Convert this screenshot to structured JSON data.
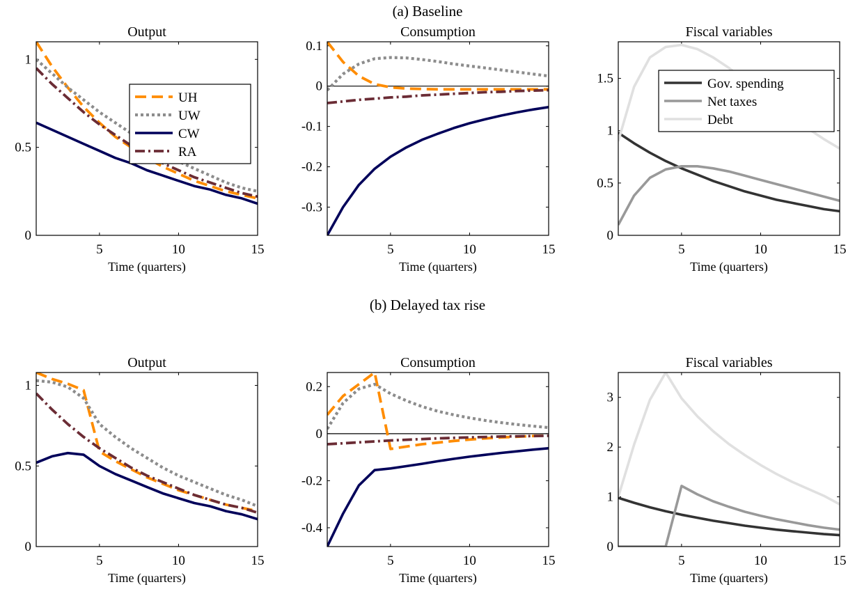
{
  "figure": {
    "sections": [
      {
        "title": "(a) Baseline"
      },
      {
        "title": "(b) Delayed tax rise"
      }
    ]
  },
  "chart_data": [
    {
      "type": "line",
      "section": "(a) Baseline",
      "title": "Output",
      "xlabel": "Time (quarters)",
      "ylabel": "",
      "xlim": [
        1,
        15
      ],
      "ylim": [
        0,
        1.1
      ],
      "xticks": [
        5,
        10,
        15
      ],
      "yticks": [
        0,
        0.5,
        1
      ],
      "ytick_labels": [
        "0",
        "0.5",
        "1"
      ],
      "grid": false,
      "legend": "top-right",
      "zero_line": false,
      "x": [
        1,
        2,
        3,
        4,
        5,
        6,
        7,
        8,
        9,
        10,
        11,
        12,
        13,
        14,
        15
      ],
      "series": [
        {
          "name": "UH",
          "style": "dashed",
          "color": "#ff8c00",
          "values": [
            1.1,
            0.96,
            0.84,
            0.73,
            0.64,
            0.56,
            0.5,
            0.44,
            0.39,
            0.35,
            0.31,
            0.28,
            0.25,
            0.23,
            0.21
          ]
        },
        {
          "name": "UW",
          "style": "dotted",
          "color": "#8c8c8c",
          "values": [
            1.0,
            0.92,
            0.84,
            0.77,
            0.7,
            0.64,
            0.58,
            0.52,
            0.47,
            0.42,
            0.38,
            0.34,
            0.3,
            0.27,
            0.25
          ]
        },
        {
          "name": "CW",
          "style": "solid",
          "color": "#00005a",
          "values": [
            0.64,
            0.6,
            0.56,
            0.52,
            0.48,
            0.44,
            0.41,
            0.37,
            0.34,
            0.31,
            0.28,
            0.26,
            0.23,
            0.21,
            0.18
          ]
        },
        {
          "name": "RA",
          "style": "dashdot",
          "color": "#6b2c35",
          "values": [
            0.95,
            0.86,
            0.78,
            0.7,
            0.63,
            0.57,
            0.51,
            0.46,
            0.41,
            0.37,
            0.33,
            0.3,
            0.27,
            0.24,
            0.22
          ]
        }
      ]
    },
    {
      "type": "line",
      "section": "(a) Baseline",
      "title": "Consumption",
      "xlabel": "Time (quarters)",
      "ylabel": "",
      "xlim": [
        1,
        15
      ],
      "ylim": [
        -0.37,
        0.11
      ],
      "xticks": [
        5,
        10,
        15
      ],
      "yticks": [
        -0.3,
        -0.2,
        -0.1,
        0,
        0.1
      ],
      "ytick_labels": [
        "-0.3",
        "-0.2",
        "-0.1",
        "0",
        "0.1"
      ],
      "grid": false,
      "legend": "",
      "zero_line": true,
      "x": [
        1,
        2,
        3,
        4,
        5,
        6,
        7,
        8,
        9,
        10,
        11,
        12,
        13,
        14,
        15
      ],
      "series": [
        {
          "style": "dashed",
          "color": "#ff8c00",
          "values": [
            0.11,
            0.06,
            0.025,
            0.005,
            -0.003,
            -0.006,
            -0.007,
            -0.008,
            -0.008,
            -0.008,
            -0.008,
            -0.008,
            -0.008,
            -0.008,
            -0.008
          ]
        },
        {
          "style": "dotted",
          "color": "#8c8c8c",
          "values": [
            -0.01,
            0.03,
            0.055,
            0.068,
            0.071,
            0.07,
            0.066,
            0.061,
            0.055,
            0.05,
            0.045,
            0.04,
            0.035,
            0.03,
            0.025
          ]
        },
        {
          "style": "solid",
          "color": "#00005a",
          "values": [
            -0.37,
            -0.3,
            -0.245,
            -0.205,
            -0.175,
            -0.152,
            -0.133,
            -0.118,
            -0.104,
            -0.092,
            -0.082,
            -0.073,
            -0.065,
            -0.058,
            -0.052
          ]
        },
        {
          "style": "dashdot",
          "color": "#6b2c35",
          "values": [
            -0.042,
            -0.038,
            -0.034,
            -0.031,
            -0.028,
            -0.026,
            -0.023,
            -0.021,
            -0.019,
            -0.017,
            -0.015,
            -0.014,
            -0.012,
            -0.011,
            -0.01
          ]
        }
      ]
    },
    {
      "type": "line",
      "section": "(a) Baseline",
      "title": "Fiscal variables",
      "xlabel": "Time (quarters)",
      "ylabel": "",
      "xlim": [
        1,
        15
      ],
      "ylim": [
        0,
        1.85
      ],
      "xticks": [
        5,
        10,
        15
      ],
      "yticks": [
        0,
        0.5,
        1,
        1.5
      ],
      "ytick_labels": [
        "0",
        "0.5",
        "1",
        "1.5"
      ],
      "grid": false,
      "legend": "top-right",
      "zero_line": false,
      "x": [
        1,
        2,
        3,
        4,
        5,
        6,
        7,
        8,
        9,
        10,
        11,
        12,
        13,
        14,
        15
      ],
      "series": [
        {
          "name": "Gov. spending",
          "style": "solid",
          "color": "#333333",
          "values": [
            0.98,
            0.88,
            0.79,
            0.71,
            0.64,
            0.58,
            0.52,
            0.47,
            0.42,
            0.38,
            0.34,
            0.31,
            0.28,
            0.25,
            0.23
          ]
        },
        {
          "name": "Net taxes",
          "style": "solid",
          "color": "#999999",
          "values": [
            0.1,
            0.38,
            0.55,
            0.63,
            0.66,
            0.66,
            0.64,
            0.61,
            0.57,
            0.53,
            0.49,
            0.45,
            0.41,
            0.37,
            0.33
          ]
        },
        {
          "name": "Debt",
          "style": "solid",
          "color": "#e0e0e0",
          "values": [
            0.9,
            1.42,
            1.7,
            1.8,
            1.82,
            1.78,
            1.7,
            1.6,
            1.48,
            1.36,
            1.24,
            1.13,
            1.02,
            0.92,
            0.83
          ]
        }
      ]
    },
    {
      "type": "line",
      "section": "(b) Delayed tax rise",
      "title": "Output",
      "xlabel": "Time (quarters)",
      "ylabel": "",
      "xlim": [
        1,
        15
      ],
      "ylim": [
        0,
        1.08
      ],
      "xticks": [
        5,
        10,
        15
      ],
      "yticks": [
        0,
        0.5,
        1
      ],
      "ytick_labels": [
        "0",
        "0.5",
        "1"
      ],
      "grid": false,
      "legend": "",
      "zero_line": false,
      "x": [
        1,
        2,
        3,
        4,
        5,
        6,
        7,
        8,
        9,
        10,
        11,
        12,
        13,
        14,
        15
      ],
      "series": [
        {
          "style": "dashed",
          "color": "#ff8c00",
          "values": [
            1.08,
            1.04,
            1.01,
            0.97,
            0.59,
            0.53,
            0.48,
            0.43,
            0.39,
            0.35,
            0.32,
            0.29,
            0.26,
            0.24,
            0.22
          ]
        },
        {
          "style": "dotted",
          "color": "#8c8c8c",
          "values": [
            1.03,
            1.02,
            0.99,
            0.92,
            0.76,
            0.68,
            0.61,
            0.55,
            0.49,
            0.44,
            0.4,
            0.36,
            0.32,
            0.29,
            0.25
          ]
        },
        {
          "style": "solid",
          "color": "#00005a",
          "values": [
            0.52,
            0.56,
            0.58,
            0.57,
            0.5,
            0.45,
            0.41,
            0.37,
            0.33,
            0.3,
            0.27,
            0.25,
            0.22,
            0.2,
            0.17
          ]
        },
        {
          "style": "dashdot",
          "color": "#6b2c35",
          "values": [
            0.95,
            0.85,
            0.76,
            0.68,
            0.61,
            0.55,
            0.49,
            0.44,
            0.4,
            0.36,
            0.32,
            0.29,
            0.26,
            0.24,
            0.21
          ]
        }
      ]
    },
    {
      "type": "line",
      "section": "(b) Delayed tax rise",
      "title": "Consumption",
      "xlabel": "Time (quarters)",
      "ylabel": "",
      "xlim": [
        1,
        15
      ],
      "ylim": [
        -0.48,
        0.26
      ],
      "xticks": [
        5,
        10,
        15
      ],
      "yticks": [
        -0.4,
        -0.2,
        0,
        0.2
      ],
      "ytick_labels": [
        "-0.4",
        "-0.2",
        "0",
        "0.2"
      ],
      "grid": false,
      "legend": "",
      "zero_line": true,
      "x": [
        1,
        2,
        3,
        4,
        5,
        6,
        7,
        8,
        9,
        10,
        11,
        12,
        13,
        14,
        15
      ],
      "series": [
        {
          "style": "dashed",
          "color": "#ff8c00",
          "values": [
            0.08,
            0.16,
            0.21,
            0.26,
            -0.065,
            -0.055,
            -0.045,
            -0.038,
            -0.031,
            -0.025,
            -0.02,
            -0.016,
            -0.013,
            -0.01,
            -0.008
          ]
        },
        {
          "style": "dotted",
          "color": "#8c8c8c",
          "values": [
            0.02,
            0.13,
            0.19,
            0.21,
            0.17,
            0.14,
            0.115,
            0.095,
            0.08,
            0.067,
            0.056,
            0.047,
            0.039,
            0.032,
            0.026
          ]
        },
        {
          "style": "solid",
          "color": "#00005a",
          "values": [
            -0.48,
            -0.34,
            -0.22,
            -0.155,
            -0.148,
            -0.138,
            -0.128,
            -0.117,
            -0.107,
            -0.098,
            -0.09,
            -0.082,
            -0.075,
            -0.068,
            -0.062
          ]
        },
        {
          "style": "dashdot",
          "color": "#6b2c35",
          "values": [
            -0.045,
            -0.041,
            -0.037,
            -0.033,
            -0.029,
            -0.026,
            -0.023,
            -0.02,
            -0.018,
            -0.016,
            -0.014,
            -0.012,
            -0.011,
            -0.01,
            -0.009
          ]
        }
      ]
    },
    {
      "type": "line",
      "section": "(b) Delayed tax rise",
      "title": "Fiscal variables",
      "xlabel": "Time (quarters)",
      "ylabel": "",
      "xlim": [
        1,
        15
      ],
      "ylim": [
        0,
        3.5
      ],
      "xticks": [
        5,
        10,
        15
      ],
      "yticks": [
        0,
        1,
        2,
        3
      ],
      "ytick_labels": [
        "0",
        "1",
        "2",
        "3"
      ],
      "grid": false,
      "legend": "",
      "zero_line": false,
      "x": [
        1,
        2,
        3,
        4,
        5,
        6,
        7,
        8,
        9,
        10,
        11,
        12,
        13,
        14,
        15
      ],
      "series": [
        {
          "style": "solid",
          "color": "#333333",
          "values": [
            0.98,
            0.88,
            0.79,
            0.71,
            0.64,
            0.58,
            0.52,
            0.47,
            0.42,
            0.38,
            0.34,
            0.31,
            0.28,
            0.25,
            0.23
          ]
        },
        {
          "style": "solid",
          "color": "#999999",
          "values": [
            0.0,
            0.0,
            0.0,
            0.0,
            1.22,
            1.05,
            0.91,
            0.8,
            0.7,
            0.62,
            0.55,
            0.49,
            0.43,
            0.38,
            0.34
          ]
        },
        {
          "style": "solid",
          "color": "#e0e0e0",
          "values": [
            1.0,
            2.05,
            2.95,
            3.5,
            2.98,
            2.62,
            2.32,
            2.06,
            1.84,
            1.64,
            1.46,
            1.3,
            1.16,
            1.02,
            0.85
          ]
        }
      ]
    }
  ]
}
